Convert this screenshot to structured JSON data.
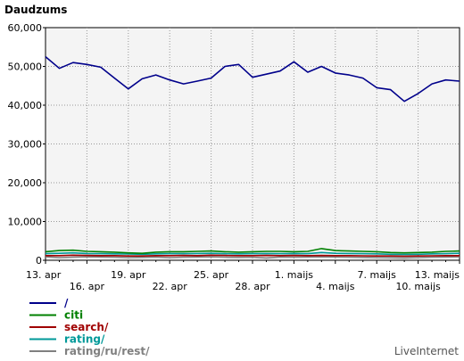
{
  "chart_data": {
    "type": "line",
    "title": "Daudzums",
    "ylim": [
      0,
      60000
    ],
    "yticks": [
      0,
      10000,
      20000,
      30000,
      40000,
      50000,
      60000
    ],
    "ytick_labels": [
      "0",
      "10,000",
      "20,000",
      "30,000",
      "40,000",
      "50,000",
      "60,000"
    ],
    "xtick_labels": [
      "13. apr",
      "16. apr",
      "19. apr",
      "22. apr",
      "25. apr",
      "28. apr",
      "1. maijs",
      "4. maijs",
      "7. maijs",
      "10. maijs",
      "13. maijs"
    ],
    "grid": true,
    "legend_position": "bottom-left",
    "x": [
      "13. apr",
      "14. apr",
      "15. apr",
      "16. apr",
      "17. apr",
      "18. apr",
      "19. apr",
      "20. apr",
      "21. apr",
      "22. apr",
      "23. apr",
      "24. apr",
      "25. apr",
      "26. apr",
      "27. apr",
      "28. apr",
      "29. apr",
      "30. apr",
      "1. maijs",
      "2. maijs",
      "3. maijs",
      "4. maijs",
      "5. maijs",
      "6. maijs",
      "7. maijs",
      "8. maijs",
      "9. maijs",
      "10. maijs",
      "11. maijs",
      "12. maijs",
      "13. maijs"
    ],
    "series": [
      {
        "name": "/",
        "color": "#00008b",
        "values": [
          52500,
          49500,
          51000,
          50500,
          49800,
          47000,
          44200,
          46800,
          47800,
          46500,
          45500,
          46200,
          47000,
          50000,
          50500,
          47200,
          48000,
          48800,
          51200,
          48500,
          50000,
          48300,
          47800,
          47000,
          44500,
          44000,
          41000,
          43000,
          45500,
          46500,
          46200
        ]
      },
      {
        "name": "citi",
        "color": "#008000",
        "values": [
          2200,
          2500,
          2600,
          2300,
          2200,
          2100,
          1900,
          1800,
          2100,
          2200,
          2200,
          2300,
          2400,
          2200,
          2100,
          2200,
          2300,
          2300,
          2200,
          2300,
          3000,
          2500,
          2400,
          2300,
          2200,
          2000,
          1900,
          2000,
          2100,
          2300,
          2400
        ]
      },
      {
        "name": "search/",
        "color": "#a00000",
        "values": [
          1200,
          1200,
          1300,
          1250,
          1200,
          1200,
          1100,
          1100,
          1200,
          1200,
          1250,
          1200,
          1300,
          1250,
          1200,
          1200,
          1250,
          1200,
          1250,
          1200,
          1250,
          1200,
          1200,
          1150,
          1100,
          1100,
          1050,
          1100,
          1150,
          1200,
          1200
        ]
      },
      {
        "name": "rating/",
        "color": "#009999",
        "values": [
          1700,
          1800,
          1900,
          1750,
          1700,
          1650,
          1600,
          1550,
          1650,
          1700,
          1700,
          1750,
          1800,
          1700,
          1650,
          1700,
          1750,
          1700,
          1750,
          1700,
          2000,
          1800,
          1750,
          1700,
          1650,
          1550,
          1500,
          1550,
          1650,
          1700,
          1800
        ]
      },
      {
        "name": "rating/ru/rest/",
        "color": "#808080",
        "values": [
          900,
          700,
          800,
          900,
          850,
          800,
          700,
          750,
          850,
          700,
          800,
          850,
          900,
          800,
          750,
          800,
          600,
          850,
          800,
          850,
          900,
          850,
          800,
          750,
          700,
          650,
          600,
          700,
          800,
          850,
          900
        ]
      }
    ]
  },
  "credit": "LiveInternet"
}
